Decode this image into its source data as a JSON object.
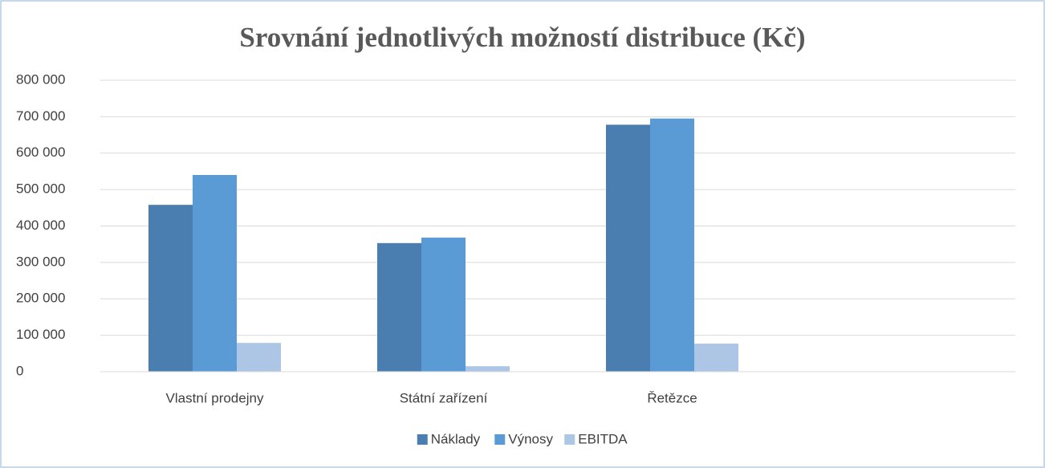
{
  "chart_data": {
    "type": "bar",
    "title": "Srovnání jednotlivých možností distribuce (Kč)",
    "categories": [
      "Vlastní prodejny",
      "Státní zařízení",
      "Řetězce",
      null
    ],
    "series": [
      {
        "name": "Náklady",
        "color": "#4a7eb1",
        "values": [
          458000,
          353000,
          678000,
          null
        ]
      },
      {
        "name": "Výnosy",
        "color": "#5b9bd5",
        "values": [
          540000,
          368000,
          695000,
          null
        ]
      },
      {
        "name": "EBITDA",
        "color": "#adc6e6",
        "values": [
          79000,
          15000,
          77000,
          null
        ]
      }
    ],
    "ylim": [
      0,
      800000
    ],
    "yticks": [
      0,
      {
        "value": 100000,
        "label": "100 000"
      },
      {
        "value": 200000,
        "label": "200 000"
      },
      {
        "value": 300000,
        "label": "300 000"
      },
      {
        "value": 400000,
        "label": "400 000"
      },
      {
        "value": 500000,
        "label": "500 000"
      },
      {
        "value": 600000,
        "label": "600 000"
      },
      {
        "value": 700000,
        "label": "700 000"
      },
      {
        "value": 800000,
        "label": "800 000"
      }
    ],
    "grid": true,
    "legend": "bottom"
  }
}
